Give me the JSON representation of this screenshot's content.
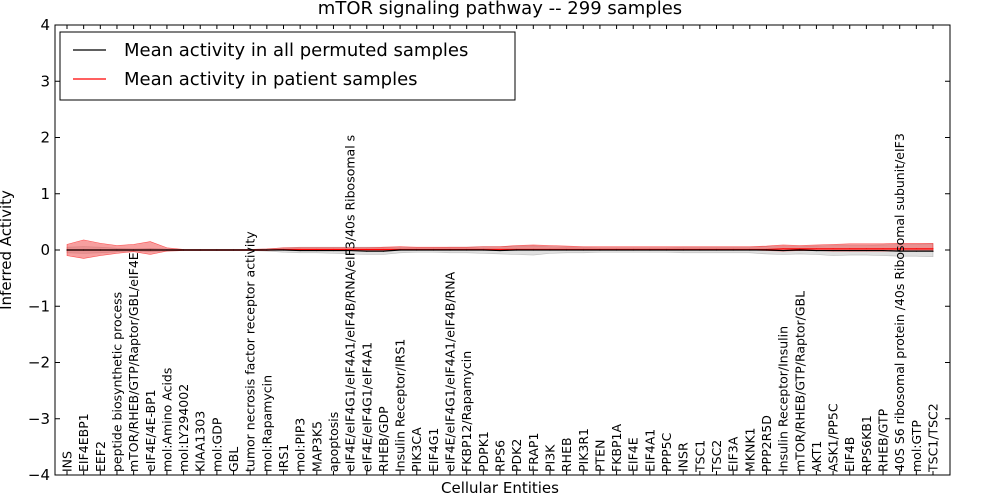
{
  "chart_data": {
    "type": "line",
    "title": "mTOR signaling pathway -- 299 samples",
    "xlabel": "Cellular Entities",
    "ylabel": "Inferred Activity",
    "ylim": [
      -4,
      4
    ],
    "yticks": [
      -4,
      -3,
      -2,
      -1,
      0,
      1,
      2,
      3,
      4
    ],
    "ytick_labels": [
      "−4",
      "−3",
      "−2",
      "−1",
      "0",
      "1",
      "2",
      "3",
      "4"
    ],
    "grid": false,
    "legend_position": "top-left",
    "categories": [
      "INS",
      "EIF4EBP1",
      "EEF2",
      "peptide biosynthetic process",
      "mTOR/RHEB/GTP/Raptor/GBL/eIF4E",
      "eIF4E/4E-BP1",
      "mol:Amino Acids",
      "mol:LY294002",
      "KIAA1303",
      "mol:GDP",
      "GBL",
      "tumor necrosis factor receptor activity",
      "mol:Rapamycin",
      "IRS1",
      "mol:PIP3",
      "MAP3K5",
      "apoptosis",
      "eIF4E/eIF4G1/eIF4A1/eIF4B/RNA/eIF3/40s Ribosomal s",
      "eIF4E/eIF4G1/eIF4A1",
      "RHEB/GDP",
      "Insulin Receptor/IRS1",
      "PIK3CA",
      "EIF4G1",
      "eIF4E/eIF4G1/eIF4A1/eIF4B/RNA",
      "FKBP12/Rapamycin",
      "PDPK1",
      "RPS6",
      "PDK2",
      "FRAP1",
      "PI3K",
      "RHEB",
      "PIK3R1",
      "PTEN",
      "FKBP1A",
      "EIF4E",
      "EIF4A1",
      "PPP5C",
      "INSR",
      "TSC1",
      "TSC2",
      "EIF3A",
      "MKNK1",
      "PPP2R5D",
      "Insulin Receptor/Insulin",
      "mTOR/RHEB/GTP/Raptor/GBL",
      "AKT1",
      "ASK1/PP5C",
      "EIF4B",
      "RPS6KB1",
      "RHEB/GTP",
      "40S S6 ribosomal protein /40s Ribosomal subunit/eIF3",
      "mol:GTP",
      "TSC1/TSC2"
    ],
    "series": [
      {
        "name": "Mean activity in all permuted samples",
        "color": "#000000",
        "values": [
          0.0,
          0.0,
          0.0,
          0.0,
          0.0,
          0.0,
          0.0,
          0.0,
          0.0,
          0.0,
          0.0,
          0.0,
          0.0,
          0.0,
          -0.01,
          -0.01,
          -0.01,
          -0.01,
          -0.02,
          -0.02,
          0.0,
          0.0,
          0.0,
          0.0,
          0.0,
          0.0,
          -0.01,
          0.0,
          0.0,
          0.0,
          0.0,
          0.0,
          0.0,
          0.0,
          0.0,
          0.0,
          0.0,
          0.0,
          0.0,
          0.0,
          0.0,
          0.0,
          0.0,
          -0.01,
          0.0,
          -0.01,
          -0.01,
          -0.01,
          -0.01,
          -0.01,
          -0.02,
          -0.02,
          -0.02
        ],
        "band_low": [
          -0.05,
          -0.06,
          -0.05,
          -0.03,
          -0.02,
          -0.03,
          -0.02,
          -0.01,
          -0.01,
          -0.01,
          -0.01,
          -0.01,
          -0.02,
          -0.04,
          -0.05,
          -0.05,
          -0.06,
          -0.07,
          -0.08,
          -0.08,
          -0.05,
          -0.04,
          -0.04,
          -0.05,
          -0.05,
          -0.06,
          -0.07,
          -0.08,
          -0.09,
          -0.06,
          -0.05,
          -0.05,
          -0.04,
          -0.04,
          -0.04,
          -0.04,
          -0.04,
          -0.05,
          -0.05,
          -0.05,
          -0.05,
          -0.05,
          -0.07,
          -0.08,
          -0.07,
          -0.08,
          -0.1,
          -0.09,
          -0.09,
          -0.1,
          -0.11,
          -0.11,
          -0.12
        ],
        "band_high": [
          0.05,
          0.06,
          0.05,
          0.03,
          0.02,
          0.03,
          0.02,
          0.01,
          0.01,
          0.01,
          0.01,
          0.01,
          0.02,
          0.04,
          0.05,
          0.05,
          0.05,
          0.05,
          0.05,
          0.05,
          0.05,
          0.04,
          0.04,
          0.05,
          0.05,
          0.06,
          0.06,
          0.07,
          0.07,
          0.06,
          0.05,
          0.05,
          0.04,
          0.04,
          0.04,
          0.04,
          0.04,
          0.05,
          0.05,
          0.05,
          0.05,
          0.05,
          0.06,
          0.06,
          0.06,
          0.07,
          0.08,
          0.08,
          0.08,
          0.09,
          0.1,
          0.1,
          0.11
        ]
      },
      {
        "name": "Mean activity in patient samples",
        "color": "#ff0000",
        "values": [
          0.0,
          0.0,
          0.0,
          0.0,
          0.0,
          0.0,
          0.0,
          0.0,
          0.0,
          0.0,
          0.0,
          0.0,
          0.0,
          0.01,
          0.01,
          0.01,
          0.01,
          0.01,
          0.01,
          0.01,
          0.01,
          0.01,
          0.01,
          0.01,
          0.01,
          0.01,
          0.01,
          0.01,
          0.01,
          0.01,
          0.01,
          0.01,
          0.01,
          0.01,
          0.01,
          0.01,
          0.01,
          0.01,
          0.01,
          0.01,
          0.01,
          0.01,
          0.01,
          0.02,
          0.02,
          0.02,
          0.02,
          0.02,
          0.02,
          0.02,
          0.02,
          0.02,
          0.02
        ],
        "band_low": [
          -0.1,
          -0.15,
          -0.1,
          -0.06,
          -0.03,
          -0.08,
          -0.02,
          -0.01,
          -0.01,
          -0.01,
          -0.01,
          -0.01,
          -0.01,
          0.0,
          0.0,
          0.0,
          -0.01,
          -0.01,
          -0.01,
          -0.01,
          0.0,
          0.0,
          0.0,
          0.0,
          0.0,
          0.0,
          0.0,
          0.0,
          0.0,
          0.0,
          0.0,
          0.0,
          0.0,
          0.0,
          0.0,
          0.0,
          0.0,
          0.0,
          0.0,
          0.0,
          0.0,
          0.0,
          -0.01,
          -0.02,
          -0.01,
          -0.01,
          -0.02,
          -0.02,
          -0.02,
          -0.02,
          -0.02,
          -0.02,
          -0.02
        ],
        "band_high": [
          0.1,
          0.18,
          0.12,
          0.08,
          0.1,
          0.15,
          0.04,
          0.01,
          0.01,
          0.01,
          0.01,
          0.01,
          0.02,
          0.04,
          0.04,
          0.04,
          0.04,
          0.04,
          0.04,
          0.05,
          0.06,
          0.05,
          0.05,
          0.05,
          0.05,
          0.06,
          0.06,
          0.08,
          0.09,
          0.08,
          0.07,
          0.06,
          0.06,
          0.06,
          0.06,
          0.06,
          0.06,
          0.06,
          0.06,
          0.06,
          0.06,
          0.06,
          0.07,
          0.09,
          0.08,
          0.09,
          0.1,
          0.11,
          0.11,
          0.11,
          0.12,
          0.12,
          0.12
        ]
      }
    ]
  }
}
